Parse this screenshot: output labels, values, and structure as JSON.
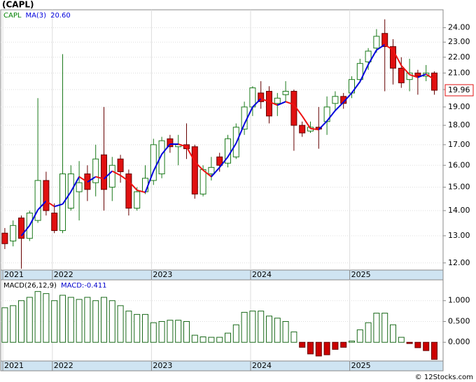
{
  "title": "(CAPL)",
  "watermark": "© 12Stocks.com",
  "chart_data": [
    {
      "type": "candlestick",
      "ticker": "CAPL",
      "ticker_color": "#008000",
      "categories": [
        "2021",
        null,
        null,
        null,
        null,
        null,
        "2022",
        null,
        null,
        null,
        null,
        null,
        null,
        null,
        null,
        null,
        null,
        null,
        "2023",
        null,
        null,
        null,
        null,
        null,
        null,
        null,
        null,
        null,
        null,
        null,
        "2024",
        null,
        null,
        null,
        null,
        null,
        null,
        null,
        null,
        null,
        null,
        null,
        "2025",
        null,
        null,
        null,
        null,
        null,
        null,
        null,
        null,
        null,
        null
      ],
      "open": [
        13.1,
        12.8,
        13.7,
        12.9,
        13.6,
        15.3,
        13.9,
        13.2,
        14.1,
        14.8,
        15.6,
        15.2,
        16.5,
        15.0,
        16.3,
        15.6,
        14.1,
        14.8,
        15.3,
        15.6,
        17.3,
        16.9,
        17.0,
        16.9,
        14.7,
        15.6,
        16.4,
        16.1,
        16.4,
        17.8,
        19.0,
        19.8,
        19.9,
        19.2,
        19.7,
        19.9,
        18.0,
        17.7,
        17.9,
        18.2,
        19.2,
        19.6,
        19.8,
        20.6,
        21.7,
        22.6,
        23.6,
        22.7,
        21.3,
        20.6,
        21.0,
        20.8,
        21.0
      ],
      "high": [
        13.3,
        13.6,
        13.8,
        14.0,
        19.5,
        15.7,
        14.3,
        22.2,
        16.0,
        16.2,
        16.0,
        17.0,
        19.0,
        16.4,
        16.5,
        15.8,
        15.0,
        16.0,
        17.3,
        17.4,
        17.5,
        17.5,
        18.1,
        17.0,
        16.0,
        16.4,
        16.6,
        17.5,
        18.1,
        19.3,
        20.2,
        20.5,
        20.2,
        19.8,
        20.5,
        20.0,
        18.2,
        18.2,
        19.0,
        19.6,
        19.9,
        19.8,
        20.8,
        21.9,
        22.6,
        23.9,
        24.6,
        23.2,
        22.0,
        21.9,
        21.2,
        21.5,
        21.1
      ],
      "low": [
        12.5,
        12.6,
        11.8,
        12.8,
        13.5,
        13.8,
        13.1,
        13.1,
        14.0,
        13.6,
        14.4,
        14.6,
        14.0,
        14.4,
        15.2,
        13.8,
        14.0,
        14.7,
        15.1,
        15.4,
        16.6,
        16.0,
        16.3,
        14.5,
        14.6,
        15.3,
        15.7,
        15.9,
        16.3,
        17.5,
        18.5,
        18.9,
        18.1,
        18.5,
        19.3,
        16.7,
        17.4,
        17.6,
        16.8,
        17.5,
        18.8,
        18.9,
        19.5,
        20.4,
        21.2,
        22.3,
        19.9,
        20.3,
        20.1,
        19.9,
        19.7,
        20.5,
        19.7
      ],
      "close": [
        12.7,
        13.4,
        12.9,
        13.9,
        15.3,
        14.0,
        13.2,
        15.6,
        15.6,
        15.2,
        14.9,
        16.3,
        14.9,
        16.0,
        15.7,
        14.1,
        14.8,
        15.4,
        17.0,
        17.2,
        16.9,
        17.0,
        16.8,
        14.7,
        15.8,
        15.9,
        16.0,
        17.3,
        17.9,
        19.0,
        20.1,
        19.3,
        18.5,
        19.5,
        19.9,
        18.0,
        17.6,
        17.9,
        17.8,
        19.0,
        19.6,
        19.2,
        20.6,
        21.6,
        22.4,
        23.4,
        22.7,
        21.3,
        20.4,
        21.0,
        20.8,
        21.0,
        19.96
      ],
      "up_color": "#1a7a1a",
      "down_color": "#e01010",
      "ma": {
        "name": "MA(3)",
        "color": "#0000dd",
        "down_color": "#ee1111",
        "last_label": "20.60",
        "values": [
          null,
          null,
          13.0,
          13.4,
          14.03,
          14.4,
          14.17,
          14.27,
          14.8,
          15.47,
          15.23,
          15.47,
          15.37,
          15.73,
          15.53,
          15.27,
          14.87,
          14.77,
          15.73,
          16.53,
          17.03,
          17.03,
          16.9,
          16.17,
          15.77,
          15.47,
          15.9,
          16.4,
          17.07,
          18.07,
          19.0,
          19.47,
          19.3,
          19.1,
          19.3,
          19.13,
          18.5,
          17.83,
          17.77,
          18.23,
          18.8,
          19.27,
          19.8,
          20.47,
          21.53,
          22.47,
          22.83,
          22.47,
          21.47,
          20.9,
          20.73,
          20.93,
          20.6
        ]
      },
      "log_scale": true,
      "grid": true,
      "ylim": [
        11.75,
        25.3
      ],
      "yticks": [
        {
          "value": 12,
          "label": "12.00"
        },
        {
          "value": 13,
          "label": "13.00"
        },
        {
          "value": 14,
          "label": "14.00"
        },
        {
          "value": 15,
          "label": "15.00"
        },
        {
          "value": 16,
          "label": "16.00"
        },
        {
          "value": 17,
          "label": "17.00"
        },
        {
          "value": 18,
          "label": "18.00"
        },
        {
          "value": 19,
          "label": "19.00"
        },
        {
          "value": 20,
          "label": "20.00"
        },
        {
          "value": 21,
          "label": "21.00"
        },
        {
          "value": 22,
          "label": "22.00"
        },
        {
          "value": 23,
          "label": "23.00"
        },
        {
          "value": 24,
          "label": "24.00"
        }
      ]
    },
    {
      "type": "bar",
      "name": "MACD(26,12,9)",
      "legend_prefix": "MACD:",
      "categories": [
        "2021",
        null,
        null,
        null,
        null,
        null,
        "2022",
        null,
        null,
        null,
        null,
        null,
        null,
        null,
        null,
        null,
        null,
        null,
        "2023",
        null,
        null,
        null,
        null,
        null,
        null,
        null,
        null,
        null,
        null,
        null,
        "2024",
        null,
        null,
        null,
        null,
        null,
        null,
        null,
        null,
        null,
        null,
        null,
        "2025",
        null,
        null,
        null,
        null,
        null,
        null,
        null,
        null,
        null,
        null
      ],
      "values": [
        0.83,
        0.88,
        1.0,
        1.08,
        1.22,
        1.17,
        1.0,
        1.13,
        1.08,
        1.03,
        1.08,
        1.0,
        1.08,
        1.0,
        0.88,
        0.75,
        0.67,
        0.67,
        0.47,
        0.5,
        0.53,
        0.53,
        0.5,
        0.17,
        0.13,
        0.12,
        0.12,
        0.22,
        0.42,
        0.72,
        0.75,
        0.75,
        0.63,
        0.58,
        0.5,
        0.25,
        -0.12,
        -0.28,
        -0.33,
        -0.3,
        -0.17,
        -0.12,
        0.03,
        0.3,
        0.47,
        0.7,
        0.7,
        0.42,
        0.12,
        -0.03,
        -0.13,
        -0.2,
        -0.411
      ],
      "color": "#1a6a1a",
      "down_color": "#cc0000",
      "grid": true,
      "ylim": [
        -0.45,
        1.5
      ],
      "yticks": [
        {
          "value": 0,
          "label": "0.000"
        },
        {
          "value": 0.5,
          "label": "0.500"
        },
        {
          "value": 1,
          "label": "1.000"
        }
      ]
    }
  ]
}
